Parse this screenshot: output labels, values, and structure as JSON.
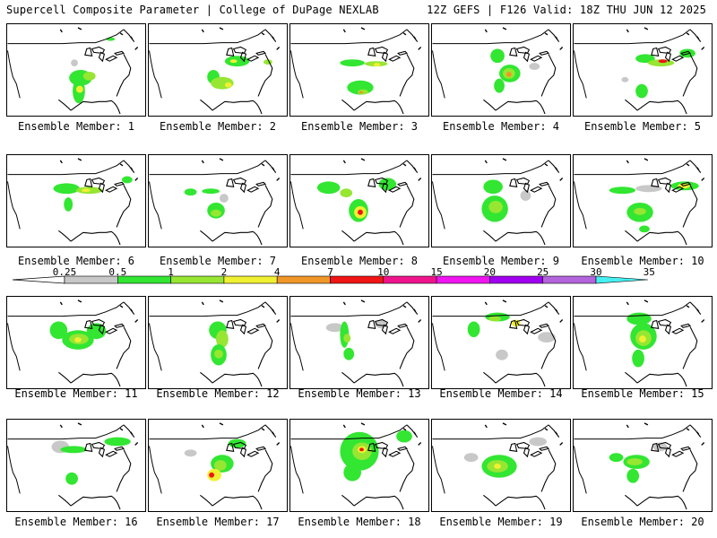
{
  "header": {
    "left": "Supercell Composite Parameter | College of DuPage NEXLAB",
    "right": "12Z GEFS | F126 Valid: 18Z THU JUN 12 2025"
  },
  "colorbar": {
    "ticks": [
      "0.25",
      "0.5",
      "1",
      "2",
      "4",
      "7",
      "10",
      "15",
      "20",
      "25",
      "30",
      "35"
    ],
    "colors": [
      "#c8c8c8",
      "#32e632",
      "#96e632",
      "#f0f032",
      "#f09628",
      "#f01414",
      "#f0148c",
      "#f014f0",
      "#a000f0",
      "#b464dc",
      "#46f0f0"
    ]
  },
  "panels": [
    {
      "label": "Ensemble Member: 1"
    },
    {
      "label": "Ensemble Member: 2"
    },
    {
      "label": "Ensemble Member: 3"
    },
    {
      "label": "Ensemble Member: 4"
    },
    {
      "label": "Ensemble Member: 5"
    },
    {
      "label": "Ensemble Member: 6"
    },
    {
      "label": "Ensemble Member: 7"
    },
    {
      "label": "Ensemble Member: 8"
    },
    {
      "label": "Ensemble Member: 9"
    },
    {
      "label": "Ensemble Member: 10"
    },
    {
      "label": "Ensemble Member: 11"
    },
    {
      "label": "Ensemble Member: 12"
    },
    {
      "label": "Ensemble Member: 13"
    },
    {
      "label": "Ensemble Member: 14"
    },
    {
      "label": "Ensemble Member: 15"
    },
    {
      "label": "Ensemble Member: 16"
    },
    {
      "label": "Ensemble Member: 17"
    },
    {
      "label": "Ensemble Member: 18"
    },
    {
      "label": "Ensemble Member: 19"
    },
    {
      "label": "Ensemble Member: 20"
    }
  ]
}
